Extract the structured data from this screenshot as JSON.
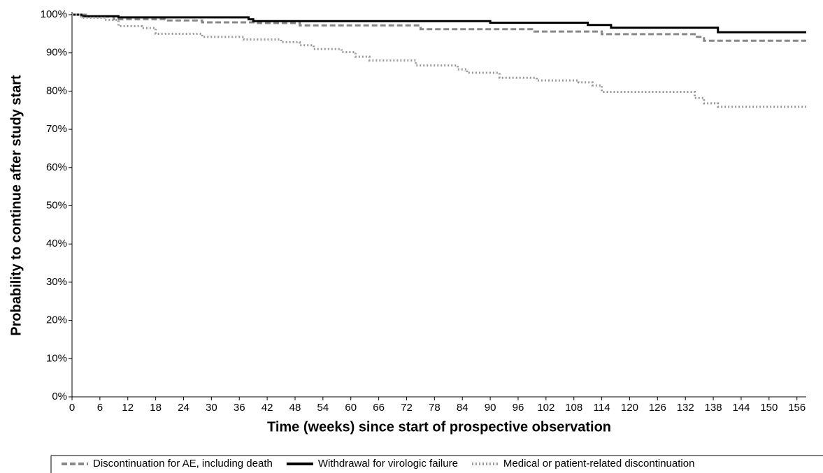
{
  "chart_data": {
    "type": "line",
    "step": true,
    "xlabel": "Time (weeks) since start of prospective observation",
    "ylabel": "Probability to continue after study start",
    "xlim": [
      0,
      158
    ],
    "ylim": [
      0,
      100
    ],
    "xticks": [
      0,
      6,
      12,
      18,
      24,
      30,
      36,
      42,
      48,
      54,
      60,
      66,
      72,
      78,
      84,
      90,
      96,
      102,
      108,
      114,
      120,
      126,
      132,
      138,
      144,
      150,
      156
    ],
    "yticks": [
      {
        "value": 0,
        "label": "0%"
      },
      {
        "value": 10,
        "label": "10%"
      },
      {
        "value": 20,
        "label": "20%"
      },
      {
        "value": 30,
        "label": "30%"
      },
      {
        "value": 40,
        "label": "40%"
      },
      {
        "value": 50,
        "label": "50%"
      },
      {
        "value": 60,
        "label": "60%"
      },
      {
        "value": 70,
        "label": "70%"
      },
      {
        "value": 80,
        "label": "80%"
      },
      {
        "value": 90,
        "label": "90%"
      },
      {
        "value": 100,
        "label": "100%"
      }
    ],
    "legend": "bottom",
    "series": [
      {
        "name": "Discontinuation for AE, including death",
        "color": "#888888",
        "dash": "dashed",
        "x": [
          0,
          3,
          9,
          20,
          28,
          40,
          49,
          75,
          99,
          114,
          134,
          136,
          158
        ],
        "values": [
          100,
          99.5,
          98.8,
          98.5,
          98,
          97.8,
          97.2,
          96.2,
          95.6,
          94.9,
          94.2,
          93.2,
          93.2
        ]
      },
      {
        "name": "Withdrawal for virologic failure",
        "color": "#000000",
        "dash": "solid",
        "x": [
          0,
          2,
          10,
          38,
          39,
          90,
          111,
          116,
          139,
          158
        ],
        "values": [
          100,
          99.6,
          99.3,
          98.8,
          98.3,
          97.9,
          97.3,
          96.6,
          95.4,
          95.4
        ]
      },
      {
        "name": "Medical or patient-related discontinuation",
        "color": "#999999",
        "dash": "dotted",
        "x": [
          0,
          2,
          7,
          10,
          15,
          18,
          28,
          37,
          45,
          49,
          52,
          58,
          61,
          64,
          74,
          83,
          85,
          92,
          100,
          109,
          112,
          114,
          134,
          136,
          139,
          158
        ],
        "values": [
          100,
          99.2,
          98.6,
          97,
          96.5,
          95,
          94.2,
          93.5,
          92.8,
          92,
          91,
          90.2,
          89,
          88,
          86.7,
          85.7,
          84.8,
          83.5,
          82.8,
          82.3,
          81.5,
          79.8,
          78.2,
          76.8,
          75.9,
          75.9
        ]
      }
    ]
  }
}
